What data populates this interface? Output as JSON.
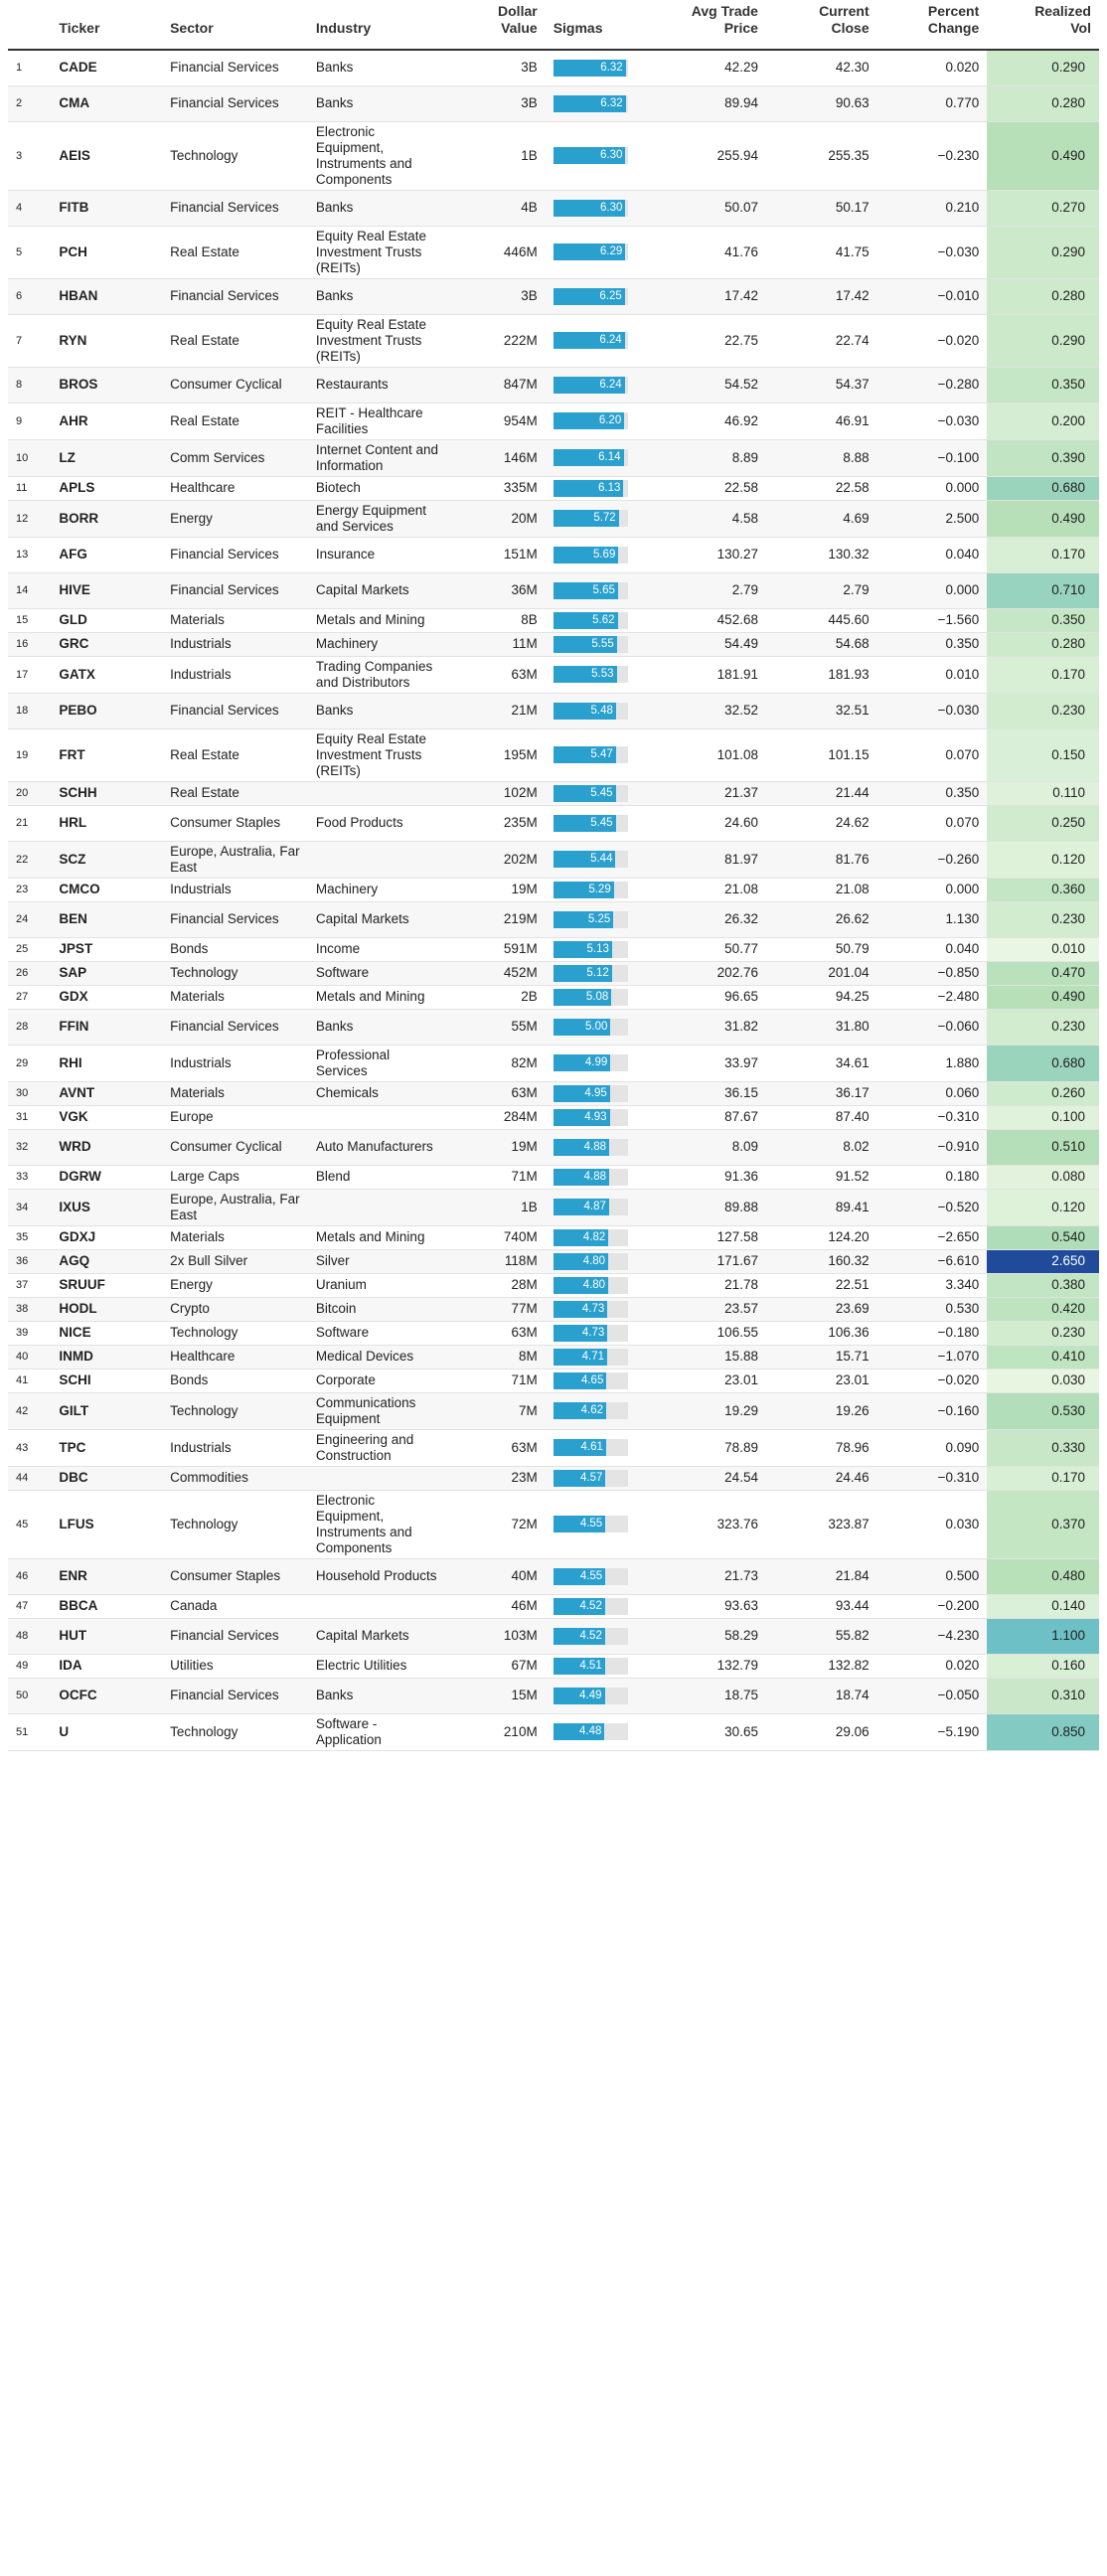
{
  "headers": {
    "ticker": "Ticker",
    "sector": "Sector",
    "industry": "Industry",
    "dollar_value": [
      "Dollar",
      "Value"
    ],
    "sigmas": "Sigmas",
    "avg_trade_price": [
      "Avg Trade",
      "Price"
    ],
    "current_close": [
      "Current",
      "Close"
    ],
    "percent_change": [
      "Percent",
      "Change"
    ],
    "realized_vol": [
      "Realized",
      "Vol"
    ]
  },
  "colors": {
    "sigma_bar": "#2aa0cf",
    "sigma_track": "#e4e4e4",
    "vol_low": "#eaf6e4",
    "vol_mid": "#b6e0b8",
    "vol_high_teal": "#6cc0c6",
    "vol_max": "#204a9a"
  },
  "sigma_scale_max": 6.5,
  "rows": [
    {
      "n": "1",
      "ticker": "CADE",
      "sector": "Financial Services",
      "industry": "Banks",
      "dollar": "3B",
      "sigma": "6.32",
      "avg": "42.29",
      "close": "42.30",
      "pct": "0.020",
      "vol": "0.290"
    },
    {
      "n": "2",
      "ticker": "CMA",
      "sector": "Financial Services",
      "industry": "Banks",
      "dollar": "3B",
      "sigma": "6.32",
      "avg": "89.94",
      "close": "90.63",
      "pct": "0.770",
      "vol": "0.280"
    },
    {
      "n": "3",
      "ticker": "AEIS",
      "sector": "Technology",
      "industry": "Electronic Equipment, Instruments and Components",
      "dollar": "1B",
      "sigma": "6.30",
      "avg": "255.94",
      "close": "255.35",
      "pct": "−0.230",
      "vol": "0.490"
    },
    {
      "n": "4",
      "ticker": "FITB",
      "sector": "Financial Services",
      "industry": "Banks",
      "dollar": "4B",
      "sigma": "6.30",
      "avg": "50.07",
      "close": "50.17",
      "pct": "0.210",
      "vol": "0.270"
    },
    {
      "n": "5",
      "ticker": "PCH",
      "sector": "Real Estate",
      "industry": "Equity Real Estate Investment Trusts (REITs)",
      "dollar": "446M",
      "sigma": "6.29",
      "avg": "41.76",
      "close": "41.75",
      "pct": "−0.030",
      "vol": "0.290"
    },
    {
      "n": "6",
      "ticker": "HBAN",
      "sector": "Financial Services",
      "industry": "Banks",
      "dollar": "3B",
      "sigma": "6.25",
      "avg": "17.42",
      "close": "17.42",
      "pct": "−0.010",
      "vol": "0.280"
    },
    {
      "n": "7",
      "ticker": "RYN",
      "sector": "Real Estate",
      "industry": "Equity Real Estate Investment Trusts (REITs)",
      "dollar": "222M",
      "sigma": "6.24",
      "avg": "22.75",
      "close": "22.74",
      "pct": "−0.020",
      "vol": "0.290"
    },
    {
      "n": "8",
      "ticker": "BROS",
      "sector": "Consumer Cyclical",
      "industry": "Restaurants",
      "dollar": "847M",
      "sigma": "6.24",
      "avg": "54.52",
      "close": "54.37",
      "pct": "−0.280",
      "vol": "0.350"
    },
    {
      "n": "9",
      "ticker": "AHR",
      "sector": "Real Estate",
      "industry": "REIT - Healthcare Facilities",
      "dollar": "954M",
      "sigma": "6.20",
      "avg": "46.92",
      "close": "46.91",
      "pct": "−0.030",
      "vol": "0.200"
    },
    {
      "n": "10",
      "ticker": "LZ",
      "sector": "Comm Services",
      "industry": "Internet Content and Information",
      "dollar": "146M",
      "sigma": "6.14",
      "avg": "8.89",
      "close": "8.88",
      "pct": "−0.100",
      "vol": "0.390"
    },
    {
      "n": "11",
      "ticker": "APLS",
      "sector": "Healthcare",
      "industry": "Biotech",
      "dollar": "335M",
      "sigma": "6.13",
      "avg": "22.58",
      "close": "22.58",
      "pct": "0.000",
      "vol": "0.680"
    },
    {
      "n": "12",
      "ticker": "BORR",
      "sector": "Energy",
      "industry": "Energy Equipment and Services",
      "dollar": "20M",
      "sigma": "5.72",
      "avg": "4.58",
      "close": "4.69",
      "pct": "2.500",
      "vol": "0.490"
    },
    {
      "n": "13",
      "ticker": "AFG",
      "sector": "Financial Services",
      "industry": "Insurance",
      "dollar": "151M",
      "sigma": "5.69",
      "avg": "130.27",
      "close": "130.32",
      "pct": "0.040",
      "vol": "0.170"
    },
    {
      "n": "14",
      "ticker": "HIVE",
      "sector": "Financial Services",
      "industry": "Capital Markets",
      "dollar": "36M",
      "sigma": "5.65",
      "avg": "2.79",
      "close": "2.79",
      "pct": "0.000",
      "vol": "0.710"
    },
    {
      "n": "15",
      "ticker": "GLD",
      "sector": "Materials",
      "industry": "Metals and Mining",
      "dollar": "8B",
      "sigma": "5.62",
      "avg": "452.68",
      "close": "445.60",
      "pct": "−1.560",
      "vol": "0.350"
    },
    {
      "n": "16",
      "ticker": "GRC",
      "sector": "Industrials",
      "industry": "Machinery",
      "dollar": "11M",
      "sigma": "5.55",
      "avg": "54.49",
      "close": "54.68",
      "pct": "0.350",
      "vol": "0.280"
    },
    {
      "n": "17",
      "ticker": "GATX",
      "sector": "Industrials",
      "industry": "Trading Companies and Distributors",
      "dollar": "63M",
      "sigma": "5.53",
      "avg": "181.91",
      "close": "181.93",
      "pct": "0.010",
      "vol": "0.170"
    },
    {
      "n": "18",
      "ticker": "PEBO",
      "sector": "Financial Services",
      "industry": "Banks",
      "dollar": "21M",
      "sigma": "5.48",
      "avg": "32.52",
      "close": "32.51",
      "pct": "−0.030",
      "vol": "0.230"
    },
    {
      "n": "19",
      "ticker": "FRT",
      "sector": "Real Estate",
      "industry": "Equity Real Estate Investment Trusts (REITs)",
      "dollar": "195M",
      "sigma": "5.47",
      "avg": "101.08",
      "close": "101.15",
      "pct": "0.070",
      "vol": "0.150"
    },
    {
      "n": "20",
      "ticker": "SCHH",
      "sector": "Real Estate",
      "industry": "",
      "dollar": "102M",
      "sigma": "5.45",
      "avg": "21.37",
      "close": "21.44",
      "pct": "0.350",
      "vol": "0.110"
    },
    {
      "n": "21",
      "ticker": "HRL",
      "sector": "Consumer Staples",
      "industry": "Food Products",
      "dollar": "235M",
      "sigma": "5.45",
      "avg": "24.60",
      "close": "24.62",
      "pct": "0.070",
      "vol": "0.250"
    },
    {
      "n": "22",
      "ticker": "SCZ",
      "sector": "Europe, Australia, Far East",
      "industry": "",
      "dollar": "202M",
      "sigma": "5.44",
      "avg": "81.97",
      "close": "81.76",
      "pct": "−0.260",
      "vol": "0.120"
    },
    {
      "n": "23",
      "ticker": "CMCO",
      "sector": "Industrials",
      "industry": "Machinery",
      "dollar": "19M",
      "sigma": "5.29",
      "avg": "21.08",
      "close": "21.08",
      "pct": "0.000",
      "vol": "0.360"
    },
    {
      "n": "24",
      "ticker": "BEN",
      "sector": "Financial Services",
      "industry": "Capital Markets",
      "dollar": "219M",
      "sigma": "5.25",
      "avg": "26.32",
      "close": "26.62",
      "pct": "1.130",
      "vol": "0.230"
    },
    {
      "n": "25",
      "ticker": "JPST",
      "sector": "Bonds",
      "industry": "Income",
      "dollar": "591M",
      "sigma": "5.13",
      "avg": "50.77",
      "close": "50.79",
      "pct": "0.040",
      "vol": "0.010"
    },
    {
      "n": "26",
      "ticker": "SAP",
      "sector": "Technology",
      "industry": "Software",
      "dollar": "452M",
      "sigma": "5.12",
      "avg": "202.76",
      "close": "201.04",
      "pct": "−0.850",
      "vol": "0.470"
    },
    {
      "n": "27",
      "ticker": "GDX",
      "sector": "Materials",
      "industry": "Metals and Mining",
      "dollar": "2B",
      "sigma": "5.08",
      "avg": "96.65",
      "close": "94.25",
      "pct": "−2.480",
      "vol": "0.490"
    },
    {
      "n": "28",
      "ticker": "FFIN",
      "sector": "Financial Services",
      "industry": "Banks",
      "dollar": "55M",
      "sigma": "5.00",
      "avg": "31.82",
      "close": "31.80",
      "pct": "−0.060",
      "vol": "0.230"
    },
    {
      "n": "29",
      "ticker": "RHI",
      "sector": "Industrials",
      "industry": "Professional Services",
      "dollar": "82M",
      "sigma": "4.99",
      "avg": "33.97",
      "close": "34.61",
      "pct": "1.880",
      "vol": "0.680"
    },
    {
      "n": "30",
      "ticker": "AVNT",
      "sector": "Materials",
      "industry": "Chemicals",
      "dollar": "63M",
      "sigma": "4.95",
      "avg": "36.15",
      "close": "36.17",
      "pct": "0.060",
      "vol": "0.260"
    },
    {
      "n": "31",
      "ticker": "VGK",
      "sector": "Europe",
      "industry": "",
      "dollar": "284M",
      "sigma": "4.93",
      "avg": "87.67",
      "close": "87.40",
      "pct": "−0.310",
      "vol": "0.100"
    },
    {
      "n": "32",
      "ticker": "WRD",
      "sector": "Consumer Cyclical",
      "industry": "Auto Manufacturers",
      "dollar": "19M",
      "sigma": "4.88",
      "avg": "8.09",
      "close": "8.02",
      "pct": "−0.910",
      "vol": "0.510"
    },
    {
      "n": "33",
      "ticker": "DGRW",
      "sector": "Large Caps",
      "industry": "Blend",
      "dollar": "71M",
      "sigma": "4.88",
      "avg": "91.36",
      "close": "91.52",
      "pct": "0.180",
      "vol": "0.080"
    },
    {
      "n": "34",
      "ticker": "IXUS",
      "sector": "Europe, Australia, Far East",
      "industry": "",
      "dollar": "1B",
      "sigma": "4.87",
      "avg": "89.88",
      "close": "89.41",
      "pct": "−0.520",
      "vol": "0.120"
    },
    {
      "n": "35",
      "ticker": "GDXJ",
      "sector": "Materials",
      "industry": "Metals and Mining",
      "dollar": "740M",
      "sigma": "4.82",
      "avg": "127.58",
      "close": "124.20",
      "pct": "−2.650",
      "vol": "0.540"
    },
    {
      "n": "36",
      "ticker": "AGQ",
      "sector": "2x Bull Silver",
      "industry": "Silver",
      "dollar": "118M",
      "sigma": "4.80",
      "avg": "171.67",
      "close": "160.32",
      "pct": "−6.610",
      "vol": "2.650"
    },
    {
      "n": "37",
      "ticker": "SRUUF",
      "sector": "Energy",
      "industry": "Uranium",
      "dollar": "28M",
      "sigma": "4.80",
      "avg": "21.78",
      "close": "22.51",
      "pct": "3.340",
      "vol": "0.380"
    },
    {
      "n": "38",
      "ticker": "HODL",
      "sector": "Crypto",
      "industry": "Bitcoin",
      "dollar": "77M",
      "sigma": "4.73",
      "avg": "23.57",
      "close": "23.69",
      "pct": "0.530",
      "vol": "0.420"
    },
    {
      "n": "39",
      "ticker": "NICE",
      "sector": "Technology",
      "industry": "Software",
      "dollar": "63M",
      "sigma": "4.73",
      "avg": "106.55",
      "close": "106.36",
      "pct": "−0.180",
      "vol": "0.230"
    },
    {
      "n": "40",
      "ticker": "INMD",
      "sector": "Healthcare",
      "industry": "Medical Devices",
      "dollar": "8M",
      "sigma": "4.71",
      "avg": "15.88",
      "close": "15.71",
      "pct": "−1.070",
      "vol": "0.410"
    },
    {
      "n": "41",
      "ticker": "SCHI",
      "sector": "Bonds",
      "industry": "Corporate",
      "dollar": "71M",
      "sigma": "4.65",
      "avg": "23.01",
      "close": "23.01",
      "pct": "−0.020",
      "vol": "0.030"
    },
    {
      "n": "42",
      "ticker": "GILT",
      "sector": "Technology",
      "industry": "Communications Equipment",
      "dollar": "7M",
      "sigma": "4.62",
      "avg": "19.29",
      "close": "19.26",
      "pct": "−0.160",
      "vol": "0.530"
    },
    {
      "n": "43",
      "ticker": "TPC",
      "sector": "Industrials",
      "industry": "Engineering and Construction",
      "dollar": "63M",
      "sigma": "4.61",
      "avg": "78.89",
      "close": "78.96",
      "pct": "0.090",
      "vol": "0.330"
    },
    {
      "n": "44",
      "ticker": "DBC",
      "sector": "Commodities",
      "industry": "",
      "dollar": "23M",
      "sigma": "4.57",
      "avg": "24.54",
      "close": "24.46",
      "pct": "−0.310",
      "vol": "0.170"
    },
    {
      "n": "45",
      "ticker": "LFUS",
      "sector": "Technology",
      "industry": "Electronic Equipment, Instruments and Components",
      "dollar": "72M",
      "sigma": "4.55",
      "avg": "323.76",
      "close": "323.87",
      "pct": "0.030",
      "vol": "0.370"
    },
    {
      "n": "46",
      "ticker": "ENR",
      "sector": "Consumer Staples",
      "industry": "Household Products",
      "dollar": "40M",
      "sigma": "4.55",
      "avg": "21.73",
      "close": "21.84",
      "pct": "0.500",
      "vol": "0.480"
    },
    {
      "n": "47",
      "ticker": "BBCA",
      "sector": "Canada",
      "industry": "",
      "dollar": "46M",
      "sigma": "4.52",
      "avg": "93.63",
      "close": "93.44",
      "pct": "−0.200",
      "vol": "0.140"
    },
    {
      "n": "48",
      "ticker": "HUT",
      "sector": "Financial Services",
      "industry": "Capital Markets",
      "dollar": "103M",
      "sigma": "4.52",
      "avg": "58.29",
      "close": "55.82",
      "pct": "−4.230",
      "vol": "1.100"
    },
    {
      "n": "49",
      "ticker": "IDA",
      "sector": "Utilities",
      "industry": "Electric Utilities",
      "dollar": "67M",
      "sigma": "4.51",
      "avg": "132.79",
      "close": "132.82",
      "pct": "0.020",
      "vol": "0.160"
    },
    {
      "n": "50",
      "ticker": "OCFC",
      "sector": "Financial Services",
      "industry": "Banks",
      "dollar": "15M",
      "sigma": "4.49",
      "avg": "18.75",
      "close": "18.74",
      "pct": "−0.050",
      "vol": "0.310"
    },
    {
      "n": "51",
      "ticker": "U",
      "sector": "Technology",
      "industry": "Software - Application",
      "dollar": "210M",
      "sigma": "4.48",
      "avg": "30.65",
      "close": "29.06",
      "pct": "−5.190",
      "vol": "0.850"
    }
  ]
}
